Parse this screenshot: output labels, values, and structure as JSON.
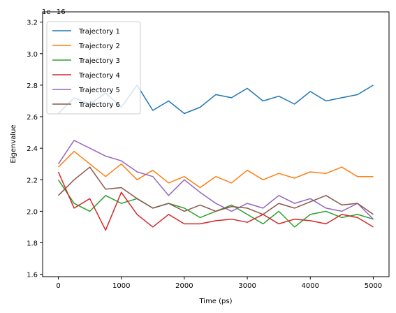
{
  "chart_data": {
    "type": "line",
    "xlabel": "Time (ps)",
    "ylabel": "Eigenvalue",
    "offset_text": "1e−16",
    "xlim": [
      -250,
      5250
    ],
    "ylim": [
      1.585,
      3.265
    ],
    "xticks": [
      0,
      1000,
      2000,
      3000,
      4000,
      5000
    ],
    "xtick_labels": [
      "0",
      "1000",
      "2000",
      "3000",
      "4000",
      "5000"
    ],
    "yticks": [
      1.6,
      1.8,
      2.0,
      2.2,
      2.4,
      2.6,
      2.8,
      3.0,
      3.2
    ],
    "ytick_labels": [
      "1.6",
      "1.8",
      "2.0",
      "2.2",
      "2.4",
      "2.6",
      "2.8",
      "3.0",
      "3.2"
    ],
    "grid": false,
    "legend_position": "top-left",
    "x": [
      0,
      250,
      500,
      750,
      1000,
      1250,
      1500,
      1750,
      2000,
      2250,
      2500,
      2750,
      3000,
      3250,
      3500,
      3750,
      4000,
      4250,
      4500,
      4750,
      5000
    ],
    "series": [
      {
        "name": "Trajectory 1",
        "color": "#1f77b4",
        "values": [
          2.62,
          2.72,
          2.68,
          2.75,
          2.66,
          2.8,
          2.64,
          2.7,
          2.62,
          2.66,
          2.74,
          2.72,
          2.78,
          2.7,
          2.73,
          2.68,
          2.76,
          2.7,
          2.72,
          2.74,
          2.8
        ]
      },
      {
        "name": "Trajectory 2",
        "color": "#ff7f0e",
        "values": [
          2.28,
          2.38,
          2.3,
          2.22,
          2.3,
          2.2,
          2.26,
          2.18,
          2.22,
          2.15,
          2.22,
          2.18,
          2.26,
          2.2,
          2.24,
          2.21,
          2.25,
          2.24,
          2.28,
          2.22,
          2.22
        ]
      },
      {
        "name": "Trajectory 3",
        "color": "#2ca02c",
        "values": [
          2.2,
          2.05,
          2.0,
          2.1,
          2.05,
          2.08,
          2.02,
          2.05,
          2.02,
          1.96,
          2.0,
          2.04,
          1.98,
          1.92,
          2.0,
          1.9,
          1.98,
          2.0,
          1.96,
          1.98,
          1.95
        ]
      },
      {
        "name": "Trajectory 4",
        "color": "#d62728",
        "values": [
          2.25,
          2.02,
          2.08,
          1.88,
          2.12,
          1.98,
          1.9,
          1.98,
          1.92,
          1.92,
          1.94,
          1.95,
          1.93,
          1.98,
          1.92,
          1.95,
          1.94,
          1.92,
          1.98,
          1.96,
          1.9
        ]
      },
      {
        "name": "Trajectory 5",
        "color": "#9467bd",
        "values": [
          2.3,
          2.45,
          2.4,
          2.35,
          2.32,
          2.25,
          2.22,
          2.1,
          2.2,
          2.12,
          2.05,
          2.0,
          2.05,
          2.02,
          2.1,
          2.05,
          2.08,
          2.02,
          2.0,
          2.05,
          1.95
        ]
      },
      {
        "name": "Trajectory 6",
        "color": "#8c564b",
        "values": [
          2.1,
          2.2,
          2.28,
          2.14,
          2.15,
          2.08,
          2.02,
          2.05,
          2.0,
          2.04,
          2.0,
          2.03,
          2.02,
          1.98,
          2.05,
          2.02,
          2.06,
          2.1,
          2.04,
          2.05,
          1.98
        ]
      }
    ]
  }
}
